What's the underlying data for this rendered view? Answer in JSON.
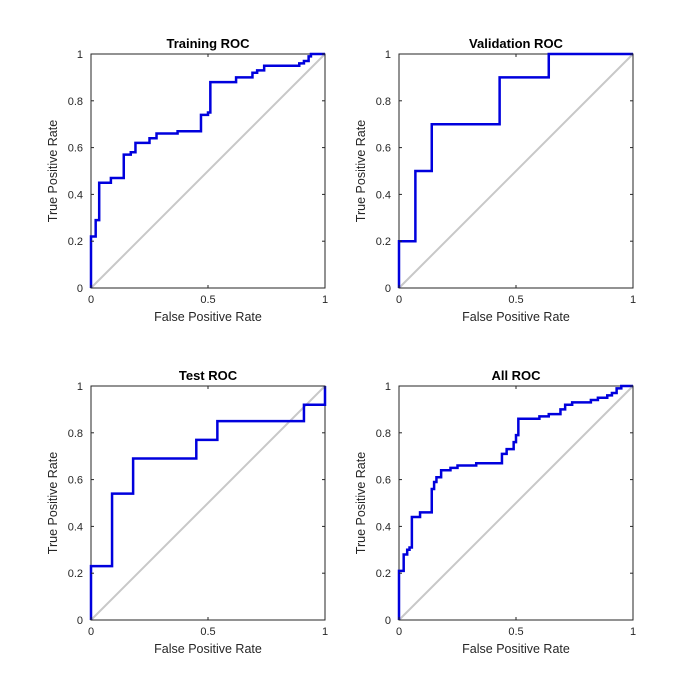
{
  "chart_data": [
    {
      "type": "line",
      "title": "Training ROC",
      "xlabel": "False Positive Rate",
      "ylabel": "True Positive Rate",
      "xlim": [
        0,
        1
      ],
      "ylim": [
        0,
        1
      ],
      "xticks": [
        "0",
        "0.5",
        "1"
      ],
      "yticks": [
        "0",
        "0.2",
        "0.4",
        "0.6",
        "0.8",
        "1"
      ],
      "grid": false,
      "series": [
        {
          "color": "#0000dd",
          "x": [
            0,
            0,
            0.02,
            0.02,
            0.035,
            0.035,
            0.085,
            0.085,
            0.14,
            0.14,
            0.17,
            0.17,
            0.19,
            0.19,
            0.25,
            0.25,
            0.28,
            0.28,
            0.37,
            0.37,
            0.47,
            0.47,
            0.5,
            0.5,
            0.51,
            0.51,
            0.62,
            0.62,
            0.69,
            0.69,
            0.71,
            0.71,
            0.74,
            0.74,
            0.89,
            0.89,
            0.91,
            0.91,
            0.93,
            0.93,
            0.94,
            0.94,
            1
          ],
          "y": [
            0,
            0.22,
            0.22,
            0.29,
            0.29,
            0.45,
            0.45,
            0.47,
            0.47,
            0.57,
            0.57,
            0.58,
            0.58,
            0.62,
            0.62,
            0.64,
            0.64,
            0.66,
            0.66,
            0.67,
            0.67,
            0.74,
            0.74,
            0.75,
            0.75,
            0.88,
            0.88,
            0.9,
            0.9,
            0.92,
            0.92,
            0.93,
            0.93,
            0.95,
            0.95,
            0.96,
            0.96,
            0.97,
            0.97,
            0.99,
            0.99,
            1,
            1
          ]
        }
      ]
    },
    {
      "type": "line",
      "title": "Validation ROC",
      "xlabel": "False Positive Rate",
      "ylabel": "True Positive Rate",
      "xlim": [
        0,
        1
      ],
      "ylim": [
        0,
        1
      ],
      "xticks": [
        "0",
        "0.5",
        "1"
      ],
      "yticks": [
        "0",
        "0.2",
        "0.4",
        "0.6",
        "0.8",
        "1"
      ],
      "grid": false,
      "series": [
        {
          "color": "#0000dd",
          "x": [
            0,
            0,
            0.07,
            0.07,
            0.14,
            0.14,
            0.43,
            0.43,
            0.64,
            0.64,
            1
          ],
          "y": [
            0,
            0.2,
            0.2,
            0.5,
            0.5,
            0.7,
            0.7,
            0.9,
            0.9,
            1,
            1
          ]
        }
      ]
    },
    {
      "type": "line",
      "title": "Test ROC",
      "xlabel": "False Positive Rate",
      "ylabel": "True Positive Rate",
      "xlim": [
        0,
        1
      ],
      "ylim": [
        0,
        1
      ],
      "xticks": [
        "0",
        "0.5",
        "1"
      ],
      "yticks": [
        "0",
        "0.2",
        "0.4",
        "0.6",
        "0.8",
        "1"
      ],
      "grid": false,
      "series": [
        {
          "color": "#0000dd",
          "x": [
            0,
            0,
            0.09,
            0.09,
            0.18,
            0.18,
            0.45,
            0.45,
            0.54,
            0.54,
            0.91,
            0.91,
            1,
            1
          ],
          "y": [
            0,
            0.23,
            0.23,
            0.54,
            0.54,
            0.69,
            0.69,
            0.77,
            0.77,
            0.85,
            0.85,
            0.92,
            0.92,
            1
          ]
        }
      ]
    },
    {
      "type": "line",
      "title": "All ROC",
      "xlabel": "False Positive Rate",
      "ylabel": "True Positive Rate",
      "xlim": [
        0,
        1
      ],
      "ylim": [
        0,
        1
      ],
      "xticks": [
        "0",
        "0.5",
        "1"
      ],
      "yticks": [
        "0",
        "0.2",
        "0.4",
        "0.6",
        "0.8",
        "1"
      ],
      "grid": false,
      "series": [
        {
          "color": "#0000dd",
          "x": [
            0,
            0,
            0.02,
            0.02,
            0.035,
            0.035,
            0.045,
            0.045,
            0.055,
            0.055,
            0.09,
            0.09,
            0.14,
            0.14,
            0.15,
            0.15,
            0.16,
            0.16,
            0.18,
            0.18,
            0.22,
            0.22,
            0.25,
            0.25,
            0.33,
            0.33,
            0.44,
            0.44,
            0.46,
            0.46,
            0.49,
            0.49,
            0.5,
            0.5,
            0.51,
            0.51,
            0.6,
            0.6,
            0.64,
            0.64,
            0.69,
            0.69,
            0.71,
            0.71,
            0.74,
            0.74,
            0.82,
            0.82,
            0.85,
            0.85,
            0.89,
            0.89,
            0.91,
            0.91,
            0.93,
            0.93,
            0.95,
            0.95,
            1
          ],
          "y": [
            0,
            0.21,
            0.21,
            0.28,
            0.28,
            0.3,
            0.3,
            0.31,
            0.31,
            0.44,
            0.44,
            0.46,
            0.46,
            0.56,
            0.56,
            0.59,
            0.59,
            0.61,
            0.61,
            0.64,
            0.64,
            0.65,
            0.65,
            0.66,
            0.66,
            0.67,
            0.67,
            0.71,
            0.71,
            0.73,
            0.73,
            0.76,
            0.76,
            0.79,
            0.79,
            0.86,
            0.86,
            0.87,
            0.87,
            0.88,
            0.88,
            0.9,
            0.9,
            0.92,
            0.92,
            0.93,
            0.93,
            0.94,
            0.94,
            0.95,
            0.95,
            0.96,
            0.96,
            0.97,
            0.97,
            0.99,
            0.99,
            1,
            1
          ]
        }
      ]
    }
  ],
  "style": {
    "diagonal_color": "#c8c8c8",
    "axis_color": "#262626"
  }
}
